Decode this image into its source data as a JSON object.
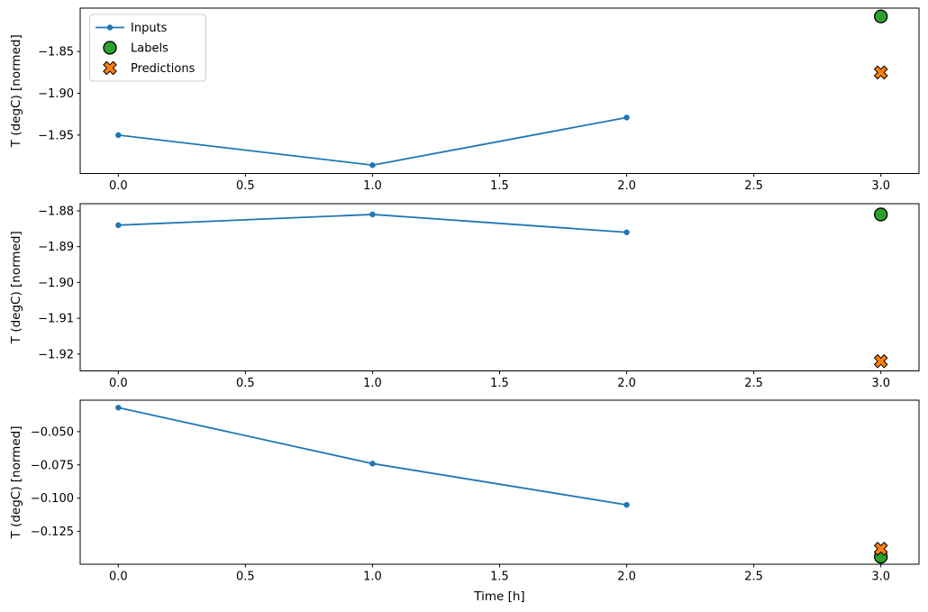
{
  "figure": {
    "background": "#ffffff",
    "xlabel": "Time [h]",
    "ylabel": "T (degC) [normed]",
    "legend": {
      "position": "upper left",
      "entries": [
        {
          "label": "Inputs",
          "marker": "line-dot",
          "color": "#1f77b4"
        },
        {
          "label": "Labels",
          "marker": "circle",
          "color": "#2ca02c"
        },
        {
          "label": "Predictions",
          "marker": "x",
          "color": "#ff7f0e"
        }
      ]
    },
    "colors": {
      "inputs": "#1f77b4",
      "labels": "#2ca02c",
      "predictions": "#ff7f0e",
      "marker_edge": "#000000",
      "spine": "#000000",
      "legend_border": "#cccccc"
    }
  },
  "chart_data": [
    {
      "type": "line",
      "title": "",
      "xlabel": "",
      "ylabel": "T (degC) [normed]",
      "show_legend": true,
      "xlim": [
        -0.15,
        3.15
      ],
      "ylim": [
        -1.996,
        -1.798
      ],
      "xtick_values": [
        0.0,
        0.5,
        1.0,
        1.5,
        2.0,
        2.5,
        3.0
      ],
      "xtick_labels": [
        "0.0",
        "0.5",
        "1.0",
        "1.5",
        "2.0",
        "2.5",
        "3.0"
      ],
      "ytick_values": [
        -1.85,
        -1.9,
        -1.95
      ],
      "ytick_labels": [
        "−1.85",
        "−1.90",
        "−1.95"
      ],
      "series": [
        {
          "name": "Inputs",
          "style": "line-dot",
          "color": "#1f77b4",
          "x": [
            0,
            1,
            2
          ],
          "y": [
            -1.95,
            -1.986,
            -1.929
          ]
        },
        {
          "name": "Labels",
          "style": "circle",
          "color": "#2ca02c",
          "x": [
            3
          ],
          "y": [
            -1.808
          ]
        },
        {
          "name": "Predictions",
          "style": "x",
          "color": "#ff7f0e",
          "x": [
            3
          ],
          "y": [
            -1.875
          ]
        }
      ]
    },
    {
      "type": "line",
      "title": "",
      "xlabel": "",
      "ylabel": "T (degC) [normed]",
      "show_legend": false,
      "xlim": [
        -0.15,
        3.15
      ],
      "ylim": [
        -1.9247,
        -1.878
      ],
      "xtick_values": [
        0.0,
        0.5,
        1.0,
        1.5,
        2.0,
        2.5,
        3.0
      ],
      "xtick_labels": [
        "0.0",
        "0.5",
        "1.0",
        "1.5",
        "2.0",
        "2.5",
        "3.0"
      ],
      "ytick_values": [
        -1.88,
        -1.89,
        -1.9,
        -1.91,
        -1.92
      ],
      "ytick_labels": [
        "−1.88",
        "−1.89",
        "−1.90",
        "−1.91",
        "−1.92"
      ],
      "series": [
        {
          "name": "Inputs",
          "style": "line-dot",
          "color": "#1f77b4",
          "x": [
            0,
            1,
            2
          ],
          "y": [
            -1.884,
            -1.881,
            -1.886
          ]
        },
        {
          "name": "Labels",
          "style": "circle",
          "color": "#2ca02c",
          "x": [
            3
          ],
          "y": [
            -1.881
          ]
        },
        {
          "name": "Predictions",
          "style": "x",
          "color": "#ff7f0e",
          "x": [
            3
          ],
          "y": [
            -1.922
          ]
        }
      ]
    },
    {
      "type": "line",
      "title": "",
      "xlabel": "Time [h]",
      "ylabel": "T (degC) [normed]",
      "show_legend": false,
      "xlim": [
        -0.15,
        3.15
      ],
      "ylim": [
        -0.1496,
        -0.0264
      ],
      "xtick_values": [
        0.0,
        0.5,
        1.0,
        1.5,
        2.0,
        2.5,
        3.0
      ],
      "xtick_labels": [
        "0.0",
        "0.5",
        "1.0",
        "1.5",
        "2.0",
        "2.5",
        "3.0"
      ],
      "ytick_values": [
        -0.05,
        -0.075,
        -0.1,
        -0.125
      ],
      "ytick_labels": [
        "−0.050",
        "−0.075",
        "−0.100",
        "−0.125"
      ],
      "series": [
        {
          "name": "Inputs",
          "style": "line-dot",
          "color": "#1f77b4",
          "x": [
            0,
            1,
            2
          ],
          "y": [
            -0.032,
            -0.074,
            -0.105
          ]
        },
        {
          "name": "Labels",
          "style": "circle",
          "color": "#2ca02c",
          "x": [
            3
          ],
          "y": [
            -0.144
          ]
        },
        {
          "name": "Predictions",
          "style": "x",
          "color": "#ff7f0e",
          "x": [
            3
          ],
          "y": [
            -0.138
          ]
        }
      ]
    }
  ]
}
